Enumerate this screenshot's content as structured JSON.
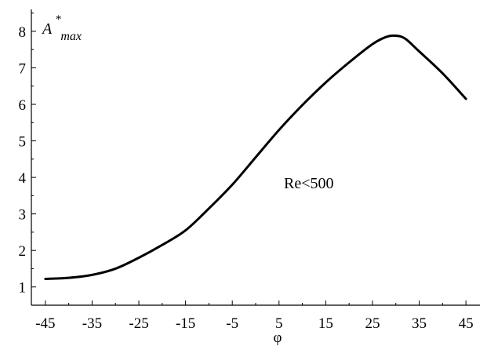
{
  "chart_data": {
    "type": "line",
    "title": "",
    "xlabel": "φ",
    "ylabel": {
      "main": "A",
      "sup": "*",
      "sub": "max"
    },
    "annotation": "Re<500",
    "xlim": [
      -48,
      48
    ],
    "ylim": [
      0.5,
      8.6
    ],
    "xticks": [
      -45,
      -35,
      -25,
      -15,
      -5,
      5,
      15,
      25,
      35,
      45
    ],
    "yticks": [
      1,
      2,
      3,
      4,
      5,
      6,
      7,
      8
    ],
    "grid": false,
    "legend": "none",
    "line_color": "#000000",
    "series": [
      {
        "x": [
          -45,
          -40,
          -35,
          -30,
          -25,
          -20,
          -15,
          -10,
          -5,
          0,
          5,
          10,
          15,
          20,
          25,
          28,
          30,
          32,
          35,
          40,
          45
        ],
        "y": [
          1.22,
          1.25,
          1.33,
          1.5,
          1.8,
          2.15,
          2.55,
          3.15,
          3.8,
          4.55,
          5.3,
          5.98,
          6.6,
          7.15,
          7.65,
          7.85,
          7.88,
          7.8,
          7.45,
          6.85,
          6.15
        ]
      }
    ]
  }
}
